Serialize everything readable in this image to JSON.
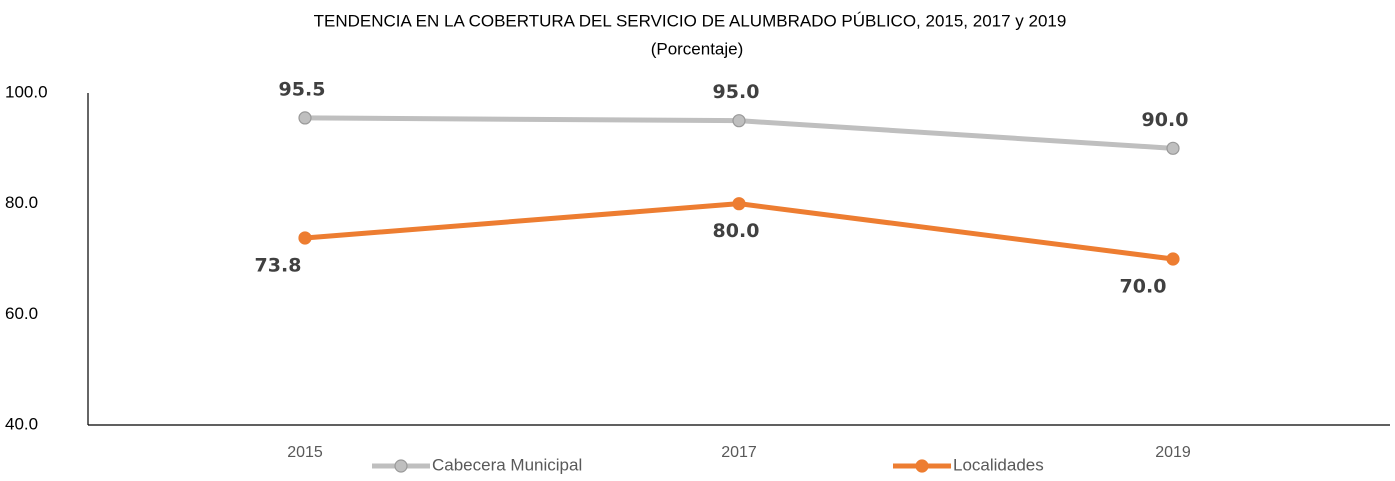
{
  "chart_data": {
    "type": "line",
    "title": "TENDENCIA EN LA COBERTURA DEL SERVICIO DE ALUMBRADO PÚBLICO, 2015, 2017 y 2019",
    "subtitle": "(Porcentaje)",
    "categories": [
      "2015",
      "2017",
      "2019"
    ],
    "series": [
      {
        "name": "Cabecera Municipal",
        "color": "#bfbfbf",
        "values": [
          95.5,
          95.0,
          90.0
        ],
        "value_labels": [
          "95.5",
          "95.0",
          "90.0"
        ]
      },
      {
        "name": "Localidades",
        "color": "#ed7d31",
        "values": [
          73.8,
          80.0,
          70.0
        ],
        "value_labels": [
          "73.8",
          "80.0",
          "70.0"
        ]
      }
    ],
    "ylim": [
      40,
      100
    ],
    "yticks": [
      {
        "value": 40,
        "label": "40.0"
      },
      {
        "value": 60,
        "label": "60.0"
      },
      {
        "value": 80,
        "label": "80.0"
      },
      {
        "value": 100,
        "label": "100.0"
      }
    ],
    "grid": false,
    "legend": "bottom"
  }
}
